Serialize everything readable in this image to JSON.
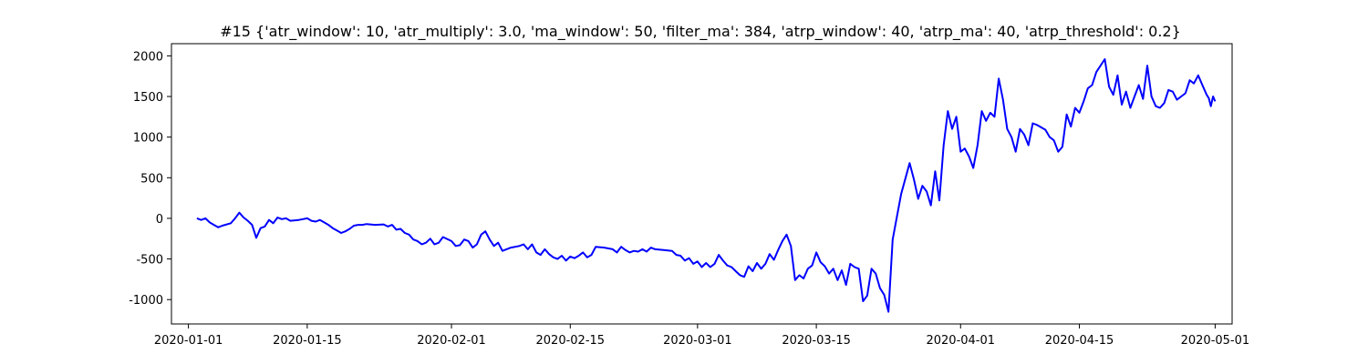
{
  "chart_data": {
    "type": "line",
    "title": "#15 {'atr_window': 10, 'atr_multiply': 3.0, 'ma_window': 50, 'filter_ma': 384, 'atrp_window': 40, 'atrp_ma': 40, 'atrp_threshold': 0.2}",
    "xlabel": "",
    "ylabel": "",
    "x_axis_type": "date",
    "xlim": [
      "2019-12-30",
      "2020-05-03"
    ],
    "ylim": [
      -1300,
      2150
    ],
    "x_ticks": [
      "2020-01-01",
      "2020-01-15",
      "2020-02-01",
      "2020-02-15",
      "2020-03-01",
      "2020-03-15",
      "2020-04-01",
      "2020-04-15",
      "2020-05-01"
    ],
    "y_ticks": [
      -1000,
      -500,
      0,
      500,
      1000,
      1500,
      2000
    ],
    "grid": false,
    "line_color": "#0000ff",
    "series": [
      {
        "points": [
          [
            "2020-01-02",
            0
          ],
          [
            "2020-01-02 12:00",
            -20
          ],
          [
            "2020-01-03",
            0
          ],
          [
            "2020-01-03 12:00",
            -50
          ],
          [
            "2020-01-04",
            -80
          ],
          [
            "2020-01-04 12:00",
            -110
          ],
          [
            "2020-01-05",
            -90
          ],
          [
            "2020-01-06",
            -60
          ],
          [
            "2020-01-06 12:00",
            0
          ],
          [
            "2020-01-07",
            70
          ],
          [
            "2020-01-07 12:00",
            10
          ],
          [
            "2020-01-08",
            -30
          ],
          [
            "2020-01-08 12:00",
            -80
          ],
          [
            "2020-01-09",
            -240
          ],
          [
            "2020-01-09 12:00",
            -120
          ],
          [
            "2020-01-10",
            -100
          ],
          [
            "2020-01-10 12:00",
            -20
          ],
          [
            "2020-01-11",
            -60
          ],
          [
            "2020-01-11 12:00",
            10
          ],
          [
            "2020-01-12",
            -10
          ],
          [
            "2020-01-12 12:00",
            0
          ],
          [
            "2020-01-13",
            -30
          ],
          [
            "2020-01-14",
            -20
          ],
          [
            "2020-01-14 12:00",
            -10
          ],
          [
            "2020-01-15",
            0
          ],
          [
            "2020-01-15 12:00",
            -30
          ],
          [
            "2020-01-16",
            -40
          ],
          [
            "2020-01-16 12:00",
            -20
          ],
          [
            "2020-01-17",
            -50
          ],
          [
            "2020-01-17 12:00",
            -80
          ],
          [
            "2020-01-18",
            -120
          ],
          [
            "2020-01-18 12:00",
            -150
          ],
          [
            "2020-01-19",
            -180
          ],
          [
            "2020-01-19 12:00",
            -160
          ],
          [
            "2020-01-20",
            -130
          ],
          [
            "2020-01-20 12:00",
            -90
          ],
          [
            "2020-01-21",
            -80
          ],
          [
            "2020-01-21 12:00",
            -80
          ],
          [
            "2020-01-22",
            -70
          ],
          [
            "2020-01-23",
            -80
          ],
          [
            "2020-01-24",
            -75
          ],
          [
            "2020-01-24 12:00",
            -100
          ],
          [
            "2020-01-25",
            -80
          ],
          [
            "2020-01-25 12:00",
            -140
          ],
          [
            "2020-01-26",
            -130
          ],
          [
            "2020-01-26 12:00",
            -180
          ],
          [
            "2020-01-27",
            -200
          ],
          [
            "2020-01-27 12:00",
            -260
          ],
          [
            "2020-01-28",
            -280
          ],
          [
            "2020-01-28 12:00",
            -320
          ],
          [
            "2020-01-29",
            -300
          ],
          [
            "2020-01-29 12:00",
            -250
          ],
          [
            "2020-01-30",
            -320
          ],
          [
            "2020-01-30 12:00",
            -300
          ],
          [
            "2020-01-31",
            -230
          ],
          [
            "2020-02-01",
            -280
          ],
          [
            "2020-02-01 12:00",
            -340
          ],
          [
            "2020-02-02",
            -330
          ],
          [
            "2020-02-02 12:00",
            -260
          ],
          [
            "2020-02-03",
            -280
          ],
          [
            "2020-02-03 12:00",
            -360
          ],
          [
            "2020-02-04",
            -320
          ],
          [
            "2020-02-04 12:00",
            -200
          ],
          [
            "2020-02-05",
            -160
          ],
          [
            "2020-02-05 12:00",
            -260
          ],
          [
            "2020-02-06",
            -340
          ],
          [
            "2020-02-06 12:00",
            -300
          ],
          [
            "2020-02-07",
            -400
          ],
          [
            "2020-02-08",
            -360
          ],
          [
            "2020-02-09",
            -340
          ],
          [
            "2020-02-09 12:00",
            -320
          ],
          [
            "2020-02-10",
            -380
          ],
          [
            "2020-02-10 12:00",
            -320
          ],
          [
            "2020-02-11",
            -420
          ],
          [
            "2020-02-11 12:00",
            -450
          ],
          [
            "2020-02-12",
            -380
          ],
          [
            "2020-02-12 12:00",
            -440
          ],
          [
            "2020-02-13",
            -480
          ],
          [
            "2020-02-13 12:00",
            -500
          ],
          [
            "2020-02-14",
            -460
          ],
          [
            "2020-02-14 12:00",
            -520
          ],
          [
            "2020-02-15",
            -470
          ],
          [
            "2020-02-15 12:00",
            -490
          ],
          [
            "2020-02-16",
            -460
          ],
          [
            "2020-02-16 12:00",
            -420
          ],
          [
            "2020-02-17",
            -480
          ],
          [
            "2020-02-17 12:00",
            -450
          ],
          [
            "2020-02-18",
            -350
          ],
          [
            "2020-02-19",
            -360
          ],
          [
            "2020-02-20",
            -380
          ],
          [
            "2020-02-20 12:00",
            -420
          ],
          [
            "2020-02-21",
            -350
          ],
          [
            "2020-02-21 12:00",
            -390
          ],
          [
            "2020-02-22",
            -420
          ],
          [
            "2020-02-22 12:00",
            -400
          ],
          [
            "2020-02-23",
            -410
          ],
          [
            "2020-02-23 12:00",
            -380
          ],
          [
            "2020-02-24",
            -410
          ],
          [
            "2020-02-24 12:00",
            -360
          ],
          [
            "2020-02-25",
            -380
          ],
          [
            "2020-02-26",
            -390
          ],
          [
            "2020-02-27",
            -400
          ],
          [
            "2020-02-27 12:00",
            -450
          ],
          [
            "2020-02-28",
            -460
          ],
          [
            "2020-02-28 12:00",
            -520
          ],
          [
            "2020-02-29",
            -490
          ],
          [
            "2020-02-29 12:00",
            -560
          ],
          [
            "2020-03-01",
            -530
          ],
          [
            "2020-03-01 12:00",
            -600
          ],
          [
            "2020-03-02",
            -550
          ],
          [
            "2020-03-02 12:00",
            -600
          ],
          [
            "2020-03-03",
            -560
          ],
          [
            "2020-03-03 12:00",
            -450
          ],
          [
            "2020-03-04",
            -520
          ],
          [
            "2020-03-04 12:00",
            -580
          ],
          [
            "2020-03-05",
            -600
          ],
          [
            "2020-03-05 12:00",
            -650
          ],
          [
            "2020-03-06",
            -700
          ],
          [
            "2020-03-06 12:00",
            -720
          ],
          [
            "2020-03-07",
            -590
          ],
          [
            "2020-03-07 12:00",
            -650
          ],
          [
            "2020-03-08",
            -550
          ],
          [
            "2020-03-08 12:00",
            -620
          ],
          [
            "2020-03-09",
            -560
          ],
          [
            "2020-03-09 12:00",
            -440
          ],
          [
            "2020-03-10",
            -510
          ],
          [
            "2020-03-10 12:00",
            -390
          ],
          [
            "2020-03-11",
            -280
          ],
          [
            "2020-03-11 12:00",
            -200
          ],
          [
            "2020-03-12",
            -340
          ],
          [
            "2020-03-12 12:00",
            -760
          ],
          [
            "2020-03-13",
            -700
          ],
          [
            "2020-03-13 12:00",
            -740
          ],
          [
            "2020-03-14",
            -620
          ],
          [
            "2020-03-14 12:00",
            -580
          ],
          [
            "2020-03-15",
            -420
          ],
          [
            "2020-03-15 12:00",
            -540
          ],
          [
            "2020-03-16",
            -590
          ],
          [
            "2020-03-16 12:00",
            -680
          ],
          [
            "2020-03-17",
            -620
          ],
          [
            "2020-03-17 12:00",
            -760
          ],
          [
            "2020-03-18",
            -640
          ],
          [
            "2020-03-18 12:00",
            -820
          ],
          [
            "2020-03-19",
            -560
          ],
          [
            "2020-03-19 12:00",
            -600
          ],
          [
            "2020-03-20",
            -620
          ],
          [
            "2020-03-20 12:00",
            -1020
          ],
          [
            "2020-03-21",
            -950
          ],
          [
            "2020-03-21 12:00",
            -620
          ],
          [
            "2020-03-22",
            -680
          ],
          [
            "2020-03-22 12:00",
            -860
          ],
          [
            "2020-03-23",
            -940
          ],
          [
            "2020-03-23 12:00",
            -1150
          ],
          [
            "2020-03-24",
            -260
          ],
          [
            "2020-03-25",
            300
          ],
          [
            "2020-03-26",
            680
          ],
          [
            "2020-03-26 12:00",
            480
          ],
          [
            "2020-03-27",
            240
          ],
          [
            "2020-03-27 12:00",
            400
          ],
          [
            "2020-03-28",
            330
          ],
          [
            "2020-03-28 12:00",
            160
          ],
          [
            "2020-03-29",
            580
          ],
          [
            "2020-03-29 12:00",
            220
          ],
          [
            "2020-03-30",
            900
          ],
          [
            "2020-03-30 12:00",
            1320
          ],
          [
            "2020-03-31",
            1100
          ],
          [
            "2020-03-31 12:00",
            1250
          ],
          [
            "2020-04-01",
            820
          ],
          [
            "2020-04-01 12:00",
            860
          ],
          [
            "2020-04-02",
            760
          ],
          [
            "2020-04-02 12:00",
            620
          ],
          [
            "2020-04-03",
            900
          ],
          [
            "2020-04-03 12:00",
            1320
          ],
          [
            "2020-04-04",
            1200
          ],
          [
            "2020-04-04 12:00",
            1300
          ],
          [
            "2020-04-05",
            1250
          ],
          [
            "2020-04-05 12:00",
            1720
          ],
          [
            "2020-04-06",
            1460
          ],
          [
            "2020-04-06 12:00",
            1100
          ],
          [
            "2020-04-07",
            1000
          ],
          [
            "2020-04-07 12:00",
            820
          ],
          [
            "2020-04-08",
            1100
          ],
          [
            "2020-04-08 12:00",
            1030
          ],
          [
            "2020-04-09",
            900
          ],
          [
            "2020-04-09 12:00",
            1170
          ],
          [
            "2020-04-10",
            1150
          ],
          [
            "2020-04-11",
            1090
          ],
          [
            "2020-04-11 12:00",
            1000
          ],
          [
            "2020-04-12",
            960
          ],
          [
            "2020-04-12 12:00",
            820
          ],
          [
            "2020-04-13",
            880
          ],
          [
            "2020-04-13 12:00",
            1280
          ],
          [
            "2020-04-14",
            1130
          ],
          [
            "2020-04-14 12:00",
            1360
          ],
          [
            "2020-04-15",
            1300
          ],
          [
            "2020-04-15 12:00",
            1440
          ],
          [
            "2020-04-16",
            1600
          ],
          [
            "2020-04-16 12:00",
            1640
          ],
          [
            "2020-04-17",
            1800
          ],
          [
            "2020-04-18",
            1960
          ],
          [
            "2020-04-18 12:00",
            1620
          ],
          [
            "2020-04-19",
            1520
          ],
          [
            "2020-04-19 12:00",
            1760
          ],
          [
            "2020-04-20",
            1400
          ],
          [
            "2020-04-20 12:00",
            1560
          ],
          [
            "2020-04-21",
            1360
          ],
          [
            "2020-04-21 12:00",
            1500
          ],
          [
            "2020-04-22",
            1640
          ],
          [
            "2020-04-22 12:00",
            1470
          ],
          [
            "2020-04-23",
            1880
          ],
          [
            "2020-04-23 12:00",
            1500
          ],
          [
            "2020-04-24",
            1380
          ],
          [
            "2020-04-24 12:00",
            1360
          ],
          [
            "2020-04-25",
            1420
          ],
          [
            "2020-04-25 12:00",
            1580
          ],
          [
            "2020-04-26",
            1560
          ],
          [
            "2020-04-26 12:00",
            1460
          ],
          [
            "2020-04-27",
            1500
          ],
          [
            "2020-04-27 12:00",
            1540
          ],
          [
            "2020-04-28",
            1700
          ],
          [
            "2020-04-28 12:00",
            1660
          ],
          [
            "2020-04-29",
            1760
          ],
          [
            "2020-04-29 12:00",
            1640
          ],
          [
            "2020-04-30",
            1520
          ],
          [
            "2020-04-30 06:00",
            1480
          ],
          [
            "2020-04-30 12:00",
            1380
          ],
          [
            "2020-04-30 18:00",
            1500
          ],
          [
            "2020-05-01",
            1440
          ]
        ]
      }
    ]
  }
}
